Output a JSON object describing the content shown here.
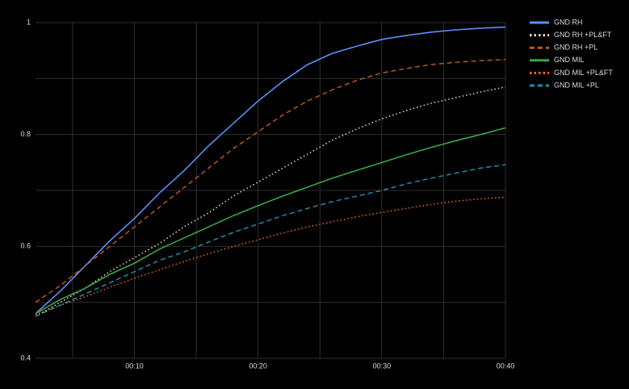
{
  "chart_data": {
    "type": "line",
    "x": [
      2,
      4,
      6,
      8,
      10,
      12,
      14,
      16,
      18,
      20,
      22,
      24,
      26,
      28,
      30,
      32,
      34,
      36,
      38,
      40
    ],
    "xlim": [
      2,
      40
    ],
    "xticks": [
      {
        "value": 10,
        "label": "00:10"
      },
      {
        "value": 20,
        "label": "00:20"
      },
      {
        "value": 30,
        "label": "00:30"
      },
      {
        "value": 40,
        "label": "00:40"
      }
    ],
    "minor_xticks": [
      5,
      15,
      25,
      35
    ],
    "ylim": [
      0.4,
      1.0
    ],
    "yticks": [
      0.4,
      0.6,
      0.8,
      1.0
    ],
    "minor_yticks": [
      0.5,
      0.7,
      0.9
    ],
    "grid": true,
    "legend": "right",
    "series": [
      {
        "name": "GND RH",
        "color": "#5b8ff9",
        "dash": "solid",
        "values": [
          0.48,
          0.52,
          0.565,
          0.61,
          0.65,
          0.695,
          0.735,
          0.78,
          0.82,
          0.86,
          0.895,
          0.925,
          0.945,
          0.958,
          0.97,
          0.977,
          0.983,
          0.987,
          0.99,
          0.992
        ]
      },
      {
        "name": "GND RH +PL&FT",
        "color": "#f2d9bd",
        "dash": "dotted",
        "values": [
          0.475,
          0.5,
          0.525,
          0.555,
          0.58,
          0.605,
          0.635,
          0.66,
          0.69,
          0.715,
          0.74,
          0.765,
          0.79,
          0.81,
          0.828,
          0.843,
          0.856,
          0.866,
          0.876,
          0.885
        ]
      },
      {
        "name": "GND RH +PL",
        "color": "#b8581f",
        "dash": "dashed",
        "values": [
          0.5,
          0.53,
          0.565,
          0.6,
          0.635,
          0.67,
          0.705,
          0.74,
          0.775,
          0.805,
          0.835,
          0.86,
          0.88,
          0.897,
          0.91,
          0.918,
          0.925,
          0.929,
          0.932,
          0.934
        ]
      },
      {
        "name": "GND MIL",
        "color": "#3aa54a",
        "dash": "solid",
        "values": [
          0.48,
          0.505,
          0.525,
          0.55,
          0.57,
          0.595,
          0.615,
          0.635,
          0.655,
          0.673,
          0.69,
          0.706,
          0.722,
          0.736,
          0.75,
          0.764,
          0.777,
          0.789,
          0.8,
          0.812
        ]
      },
      {
        "name": "GND MIL +PL&FT",
        "color": "#ee6a25",
        "dash": "dotted",
        "values": [
          0.478,
          0.495,
          0.51,
          0.527,
          0.543,
          0.558,
          0.573,
          0.587,
          0.6,
          0.612,
          0.624,
          0.635,
          0.644,
          0.653,
          0.661,
          0.668,
          0.675,
          0.681,
          0.685,
          0.688
        ]
      },
      {
        "name": "GND MIL +PL",
        "color": "#1d8ea6",
        "dash": "dashed",
        "values": [
          0.475,
          0.495,
          0.515,
          0.535,
          0.555,
          0.575,
          0.59,
          0.608,
          0.625,
          0.64,
          0.655,
          0.668,
          0.68,
          0.69,
          0.7,
          0.712,
          0.722,
          0.731,
          0.74,
          0.746
        ]
      }
    ]
  }
}
